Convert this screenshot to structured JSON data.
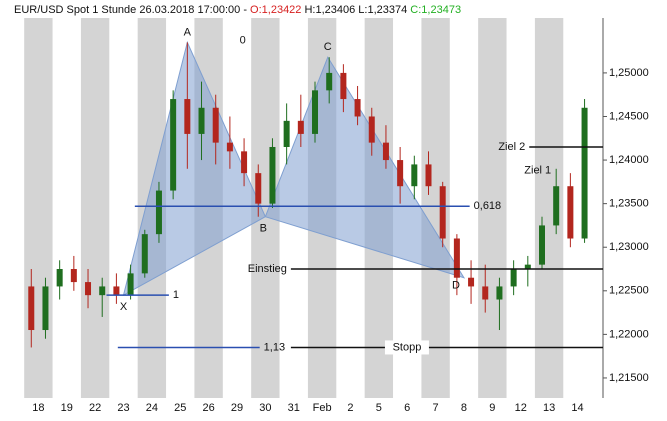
{
  "chart_data": {
    "type": "candlestick",
    "header": [
      {
        "text": "EUR/USD Spot 1 Stunde  26.03.2018 17:00:00 - ",
        "color": "#111111"
      },
      {
        "text": "O:1,23422",
        "color": "#d62020"
      },
      {
        "text": " H:1,23406 L:1,23374 ",
        "color": "#111111"
      },
      {
        "text": "C:1,23473",
        "color": "#22b022"
      }
    ],
    "categories": [
      "18",
      "19",
      "22",
      "23",
      "24",
      "25",
      "26",
      "29",
      "30",
      "31",
      "Feb",
      "2",
      "5",
      "6",
      "7",
      "8",
      "9",
      "12",
      "13",
      "14"
    ],
    "xlim": [
      -1,
      19.9
    ],
    "ylim": [
      1.2127,
      1.2563
    ],
    "yticks": [
      {
        "value": 1.215,
        "label": "1,21500"
      },
      {
        "value": 1.22,
        "label": "1,22000"
      },
      {
        "value": 1.225,
        "label": "1,22500"
      },
      {
        "value": 1.23,
        "label": "1,23000"
      },
      {
        "value": 1.235,
        "label": "1,23500"
      },
      {
        "value": 1.24,
        "label": "1,24000"
      },
      {
        "value": 1.245,
        "label": "1,24500"
      },
      {
        "value": 1.25,
        "label": "1,25000"
      }
    ],
    "up_color": "#1f6e1f",
    "down_color": "#b3261e",
    "band_color": "#d4d4d4",
    "x": [
      -0.25,
      0.25,
      0.75,
      1.25,
      1.75,
      2.25,
      2.75,
      3.25,
      3.75,
      4.25,
      4.75,
      5.25,
      5.75,
      6.25,
      6.75,
      7.25,
      7.75,
      8.25,
      8.75,
      9.25,
      9.75,
      10.25,
      10.75,
      11.25,
      11.75,
      12.25,
      12.75,
      13.25,
      13.75,
      14.25,
      14.75,
      15.25,
      15.75,
      16.25,
      16.75,
      17.25,
      17.75,
      18.25,
      18.75,
      19.25
    ],
    "open": [
      1.2255,
      1.2205,
      1.2255,
      1.2275,
      1.226,
      1.2245,
      1.2255,
      1.2245,
      1.227,
      1.2315,
      1.2365,
      1.247,
      1.243,
      1.246,
      1.242,
      1.241,
      1.2385,
      1.235,
      1.2415,
      1.2445,
      1.243,
      1.248,
      1.25,
      1.247,
      1.245,
      1.242,
      1.24,
      1.237,
      1.2395,
      1.237,
      1.231,
      1.2265,
      1.2255,
      1.224,
      1.2255,
      1.2275,
      1.228,
      1.2325,
      1.237,
      1.231
    ],
    "high": [
      1.2275,
      1.2265,
      1.2285,
      1.229,
      1.2275,
      1.2265,
      1.227,
      1.228,
      1.232,
      1.2375,
      1.248,
      1.2535,
      1.249,
      1.2475,
      1.245,
      1.2425,
      1.2395,
      1.2425,
      1.2465,
      1.2475,
      1.249,
      1.2518,
      1.251,
      1.2485,
      1.246,
      1.244,
      1.2415,
      1.2405,
      1.241,
      1.2375,
      1.2315,
      1.2285,
      1.228,
      1.2265,
      1.2285,
      1.229,
      1.2335,
      1.239,
      1.2385,
      1.247
    ],
    "low": [
      1.2185,
      1.2195,
      1.224,
      1.225,
      1.223,
      1.222,
      1.2235,
      1.224,
      1.2265,
      1.2305,
      1.2355,
      1.239,
      1.24,
      1.2395,
      1.239,
      1.237,
      1.2335,
      1.2345,
      1.2395,
      1.2415,
      1.242,
      1.2465,
      1.2455,
      1.244,
      1.2405,
      1.239,
      1.235,
      1.2355,
      1.236,
      1.23,
      1.2245,
      1.2235,
      1.2225,
      1.2205,
      1.2245,
      1.2255,
      1.2275,
      1.2315,
      1.23,
      1.2305
    ],
    "close": [
      1.2205,
      1.2255,
      1.2275,
      1.226,
      1.2245,
      1.2255,
      1.2245,
      1.227,
      1.2315,
      1.2365,
      1.247,
      1.243,
      1.246,
      1.242,
      1.241,
      1.2385,
      1.235,
      1.2415,
      1.2445,
      1.243,
      1.248,
      1.25,
      1.247,
      1.245,
      1.242,
      1.24,
      1.237,
      1.2395,
      1.237,
      1.231,
      1.2265,
      1.2255,
      1.224,
      1.2255,
      1.2275,
      1.228,
      1.2325,
      1.237,
      1.231,
      1.246
    ],
    "pattern_color": "#7f9fd0",
    "pattern": [
      {
        "label": "X",
        "x": 3.0,
        "y": 1.2245
      },
      {
        "label": "A",
        "x": 5.25,
        "y": 1.2535
      },
      {
        "label": "B",
        "x": 8.0,
        "y": 1.2335
      },
      {
        "label": "C",
        "x": 10.2,
        "y": 1.2518
      },
      {
        "label": "D",
        "x": 15.0,
        "y": 1.2265
      }
    ],
    "levels": [
      {
        "label": "0,618",
        "value": 1.2347,
        "x": [
          3.4,
          15.2
        ],
        "color": "#2a4fb0",
        "label_pos": "right"
      },
      {
        "label": "1",
        "value": 1.2245,
        "x": [
          2.4,
          4.6
        ],
        "color": "#2a4fb0",
        "label_pos": "right"
      },
      {
        "label": "1,13",
        "value": 1.2185,
        "x": [
          2.8,
          7.8
        ],
        "color": "#2a4fb0",
        "label_pos": "right"
      },
      {
        "label": "Stopp",
        "value": 1.2185,
        "x": [
          8.9,
          19.9
        ],
        "color": "#111111",
        "label_pos": "middle"
      },
      {
        "label": "Einstieg",
        "value": 1.2275,
        "x": [
          8.9,
          19.9
        ],
        "color": "#111111",
        "label_pos": "left"
      },
      {
        "label": "Ziel 2",
        "value": 1.2415,
        "x": [
          17.3,
          19.9
        ],
        "color": "#111111",
        "label_pos": "left"
      }
    ],
    "annotations": [
      {
        "text": "Ziel 1",
        "x": 17.6,
        "y": 1.2388,
        "color": "#111111"
      },
      {
        "text": "0",
        "x": 7.2,
        "y": 1.2537,
        "color": "#2a4fb0"
      }
    ]
  }
}
